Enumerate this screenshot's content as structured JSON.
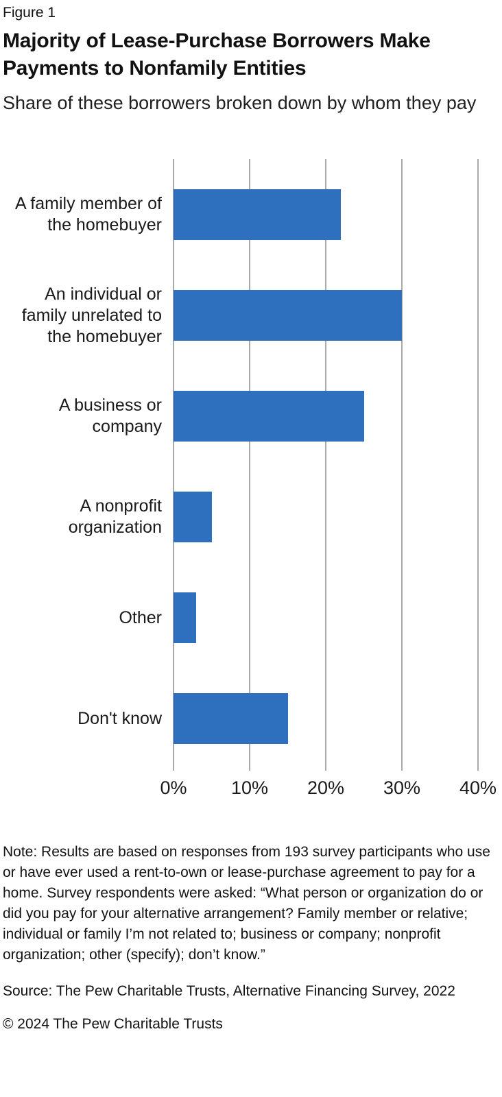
{
  "figure_label": "Figure 1",
  "title": "Majority of Lease-Purchase Borrowers Make Payments to Nonfamily Entities",
  "subtitle": "Share of these borrowers broken down by whom they pay",
  "chart_data": {
    "type": "bar",
    "orientation": "horizontal",
    "title": "Majority of Lease-Purchase Borrowers Make Payments to Nonfamily Entities",
    "subtitle": "Share of these borrowers broken down by whom they pay",
    "categories": [
      "A family member of the homebuyer",
      "An individual or family unrelated to the homebuyer",
      "A business or company",
      "A nonprofit organization",
      "Other",
      "Don't know"
    ],
    "values": [
      22,
      30,
      25,
      5,
      3,
      15
    ],
    "unit": "%",
    "xlabel": "",
    "ylabel": "",
    "xlim": [
      0,
      40
    ],
    "x_ticks": [
      "0%",
      "10%",
      "20%",
      "30%",
      "40%"
    ],
    "x_tick_values": [
      0,
      10,
      20,
      30,
      40
    ],
    "grid": true,
    "legend": false,
    "bar_color": "#2E6FBE",
    "gridline_color": "#A9A9A9"
  },
  "note": "Note: Results are based on responses from 193 survey participants who use or have ever used a rent-to-own or lease-purchase agreement to pay for a home. Survey respondents were asked: “What person or organization do or did you pay for your alternative arrangement? Family member or relative; individual or family I’m not related to; business or company; nonprofit organization; other (specify); don’t know.”",
  "source": "Source: The Pew Charitable Trusts, Alternative Financing Survey, 2022",
  "copyright": "© 2024 The Pew Charitable Trusts"
}
